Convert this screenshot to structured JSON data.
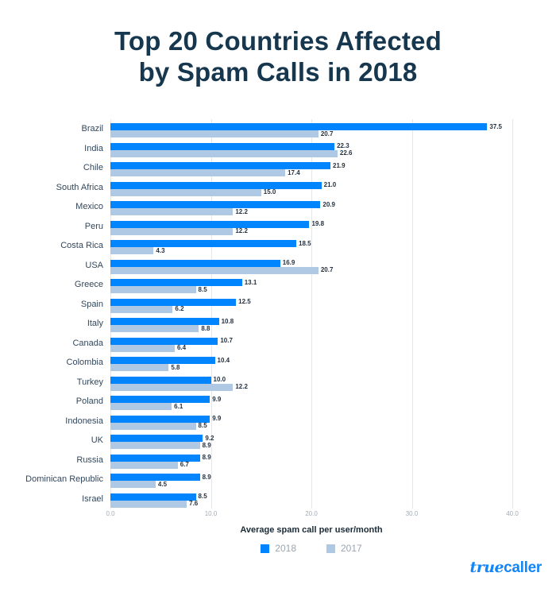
{
  "title": {
    "line1": "Top 20 Countries Affected",
    "line2": "by Spam Calls in 2018"
  },
  "chart_data": {
    "type": "bar",
    "orientation": "horizontal",
    "title": "Top 20 Countries Affected by Spam Calls in 2018",
    "xlabel": "Average spam call per user/month",
    "xlim": [
      0,
      40
    ],
    "grid": true,
    "legend_position": "bottom",
    "x_ticks": [
      {
        "value": 0,
        "label": "0.0"
      },
      {
        "value": 10,
        "label": "10.0"
      },
      {
        "value": 20,
        "label": "20.0"
      },
      {
        "value": 30,
        "label": "30.0"
      },
      {
        "value": 40,
        "label": "40.0"
      }
    ],
    "categories": [
      "Brazil",
      "India",
      "Chile",
      "South Africa",
      "Mexico",
      "Peru",
      "Costa Rica",
      "USA",
      "Greece",
      "Spain",
      "Italy",
      "Canada",
      "Colombia",
      "Turkey",
      "Poland",
      "Indonesia",
      "UK",
      "Russia",
      "Dominican Republic",
      "Israel"
    ],
    "series": [
      {
        "name": "2018",
        "color": "#0085FF",
        "values": [
          37.5,
          22.3,
          21.9,
          21.0,
          20.9,
          19.8,
          18.5,
          16.9,
          13.1,
          12.5,
          10.8,
          10.7,
          10.4,
          10.0,
          9.9,
          9.9,
          9.2,
          8.9,
          8.9,
          8.5
        ]
      },
      {
        "name": "2017",
        "color": "#AFC8E3",
        "values": [
          20.7,
          22.6,
          17.4,
          15.0,
          12.2,
          12.2,
          4.3,
          20.7,
          8.5,
          6.2,
          8.8,
          6.4,
          5.8,
          12.2,
          6.1,
          8.5,
          8.9,
          6.7,
          4.5,
          7.6
        ]
      }
    ]
  },
  "footer": {
    "logo_script": "true",
    "logo_bold": "caller"
  },
  "colors": {
    "bar_2018": "#0085FF",
    "bar_2017": "#AFC8E3",
    "title_text": "#16374E",
    "logo_blue": "#1285F8"
  }
}
